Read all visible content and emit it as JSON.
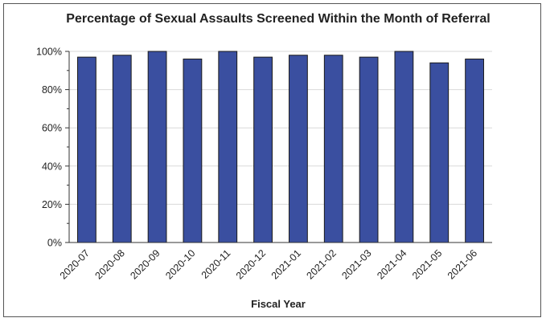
{
  "chart_data": {
    "type": "bar",
    "title": "Percentage of Sexual Assaults Screened Within the Month of Referral",
    "xlabel": "Fiscal Year",
    "ylabel": "",
    "categories": [
      "2020-07",
      "2020-08",
      "2020-09",
      "2020-10",
      "2020-11",
      "2020-12",
      "2021-01",
      "2021-02",
      "2021-03",
      "2021-04",
      "2021-05",
      "2021-06"
    ],
    "values": [
      97,
      98,
      100,
      96,
      100,
      97,
      98,
      98,
      97,
      100,
      94,
      96
    ],
    "ylim": [
      0,
      100
    ],
    "yticks": [
      0,
      20,
      40,
      60,
      80,
      100
    ],
    "ytick_labels": [
      "0%",
      "20%",
      "40%",
      "60%",
      "80%",
      "100%"
    ],
    "grid": true,
    "bar_color": "#3A4FA0",
    "bar_edge_color": "#1a1a1a"
  }
}
